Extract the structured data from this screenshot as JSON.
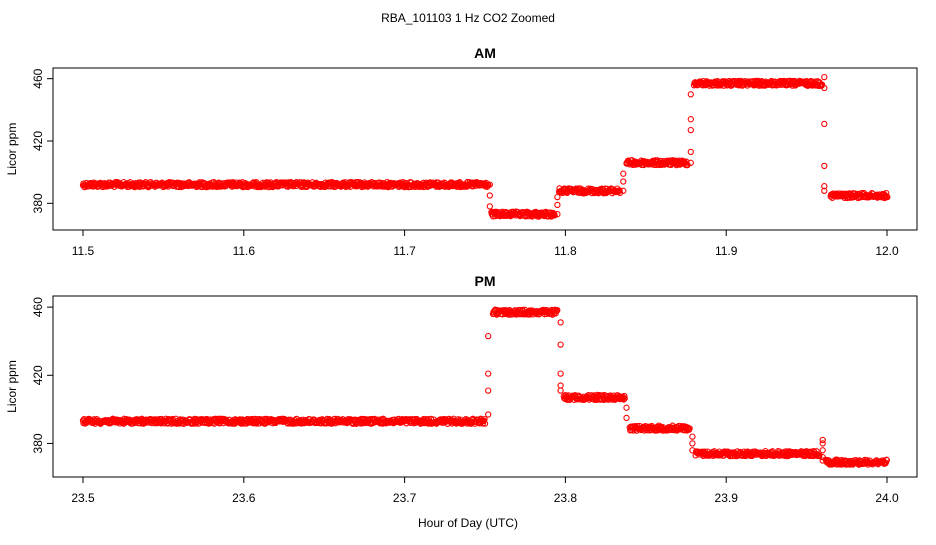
{
  "figure": {
    "title": "RBA_101103  1 Hz CO2 Zoomed",
    "xlabel": "Hour of Day (UTC)"
  },
  "colors": {
    "points": "#ff0000",
    "axis": "#000000",
    "background": "#ffffff"
  },
  "chart_data": [
    {
      "type": "scatter",
      "title": "AM",
      "xlabel": "",
      "ylabel": "Licor ppm",
      "xlim": [
        11.5,
        12.0
      ],
      "ylim": [
        368,
        463
      ],
      "xticks": [
        "11.5",
        "11.6",
        "11.7",
        "11.8",
        "11.9",
        "12.0"
      ],
      "yticks": [
        "380",
        "420",
        "460"
      ],
      "grid": false,
      "segments": [
        {
          "x": [
            11.5,
            11.752
          ],
          "y": 392
        },
        {
          "x": [
            11.754,
            11.793
          ],
          "y": 373
        },
        {
          "x": [
            11.796,
            11.834
          ],
          "y": 388
        },
        {
          "x": [
            11.838,
            11.876
          ],
          "y": 406
        },
        {
          "x": [
            11.88,
            11.96
          ],
          "y": 457
        },
        {
          "x": [
            11.965,
            12.0
          ],
          "y": 385
        }
      ],
      "transitions": [
        {
          "x": 11.753,
          "y": [
            392,
            385,
            378
          ]
        },
        {
          "x": 11.795,
          "y": [
            373,
            379,
            384
          ]
        },
        {
          "x": 11.836,
          "y": [
            388,
            394,
            399
          ]
        },
        {
          "x": 11.878,
          "y": [
            406,
            413,
            427,
            434,
            450
          ]
        },
        {
          "x": 11.961,
          "y": [
            461,
            454,
            431,
            404,
            391,
            388
          ]
        }
      ]
    },
    {
      "type": "scatter",
      "title": "PM",
      "xlabel": "Hour of Day (UTC)",
      "ylabel": "Licor ppm",
      "xlim": [
        23.5,
        24.0
      ],
      "ylim": [
        365,
        463
      ],
      "xticks": [
        "23.5",
        "23.6",
        "23.7",
        "23.8",
        "23.9",
        "24.0"
      ],
      "yticks": [
        "380",
        "420",
        "460"
      ],
      "grid": false,
      "segments": [
        {
          "x": [
            23.5,
            23.75
          ],
          "y": 393
        },
        {
          "x": [
            23.755,
            23.795
          ],
          "y": 457
        },
        {
          "x": [
            23.799,
            23.837
          ],
          "y": 407
        },
        {
          "x": [
            23.84,
            23.877
          ],
          "y": 389
        },
        {
          "x": [
            23.881,
            23.958
          ],
          "y": 374
        },
        {
          "x": [
            23.962,
            24.0
          ],
          "y": 369
        }
      ],
      "transitions": [
        {
          "x": 23.752,
          "y": [
            397,
            411,
            421,
            443
          ]
        },
        {
          "x": 23.797,
          "y": [
            451,
            438,
            421,
            414,
            411
          ]
        },
        {
          "x": 23.838,
          "y": [
            401,
            395
          ]
        },
        {
          "x": 23.879,
          "y": [
            384,
            380,
            376
          ]
        },
        {
          "x": 23.96,
          "y": [
            382,
            380,
            376,
            372,
            370
          ]
        }
      ]
    }
  ]
}
